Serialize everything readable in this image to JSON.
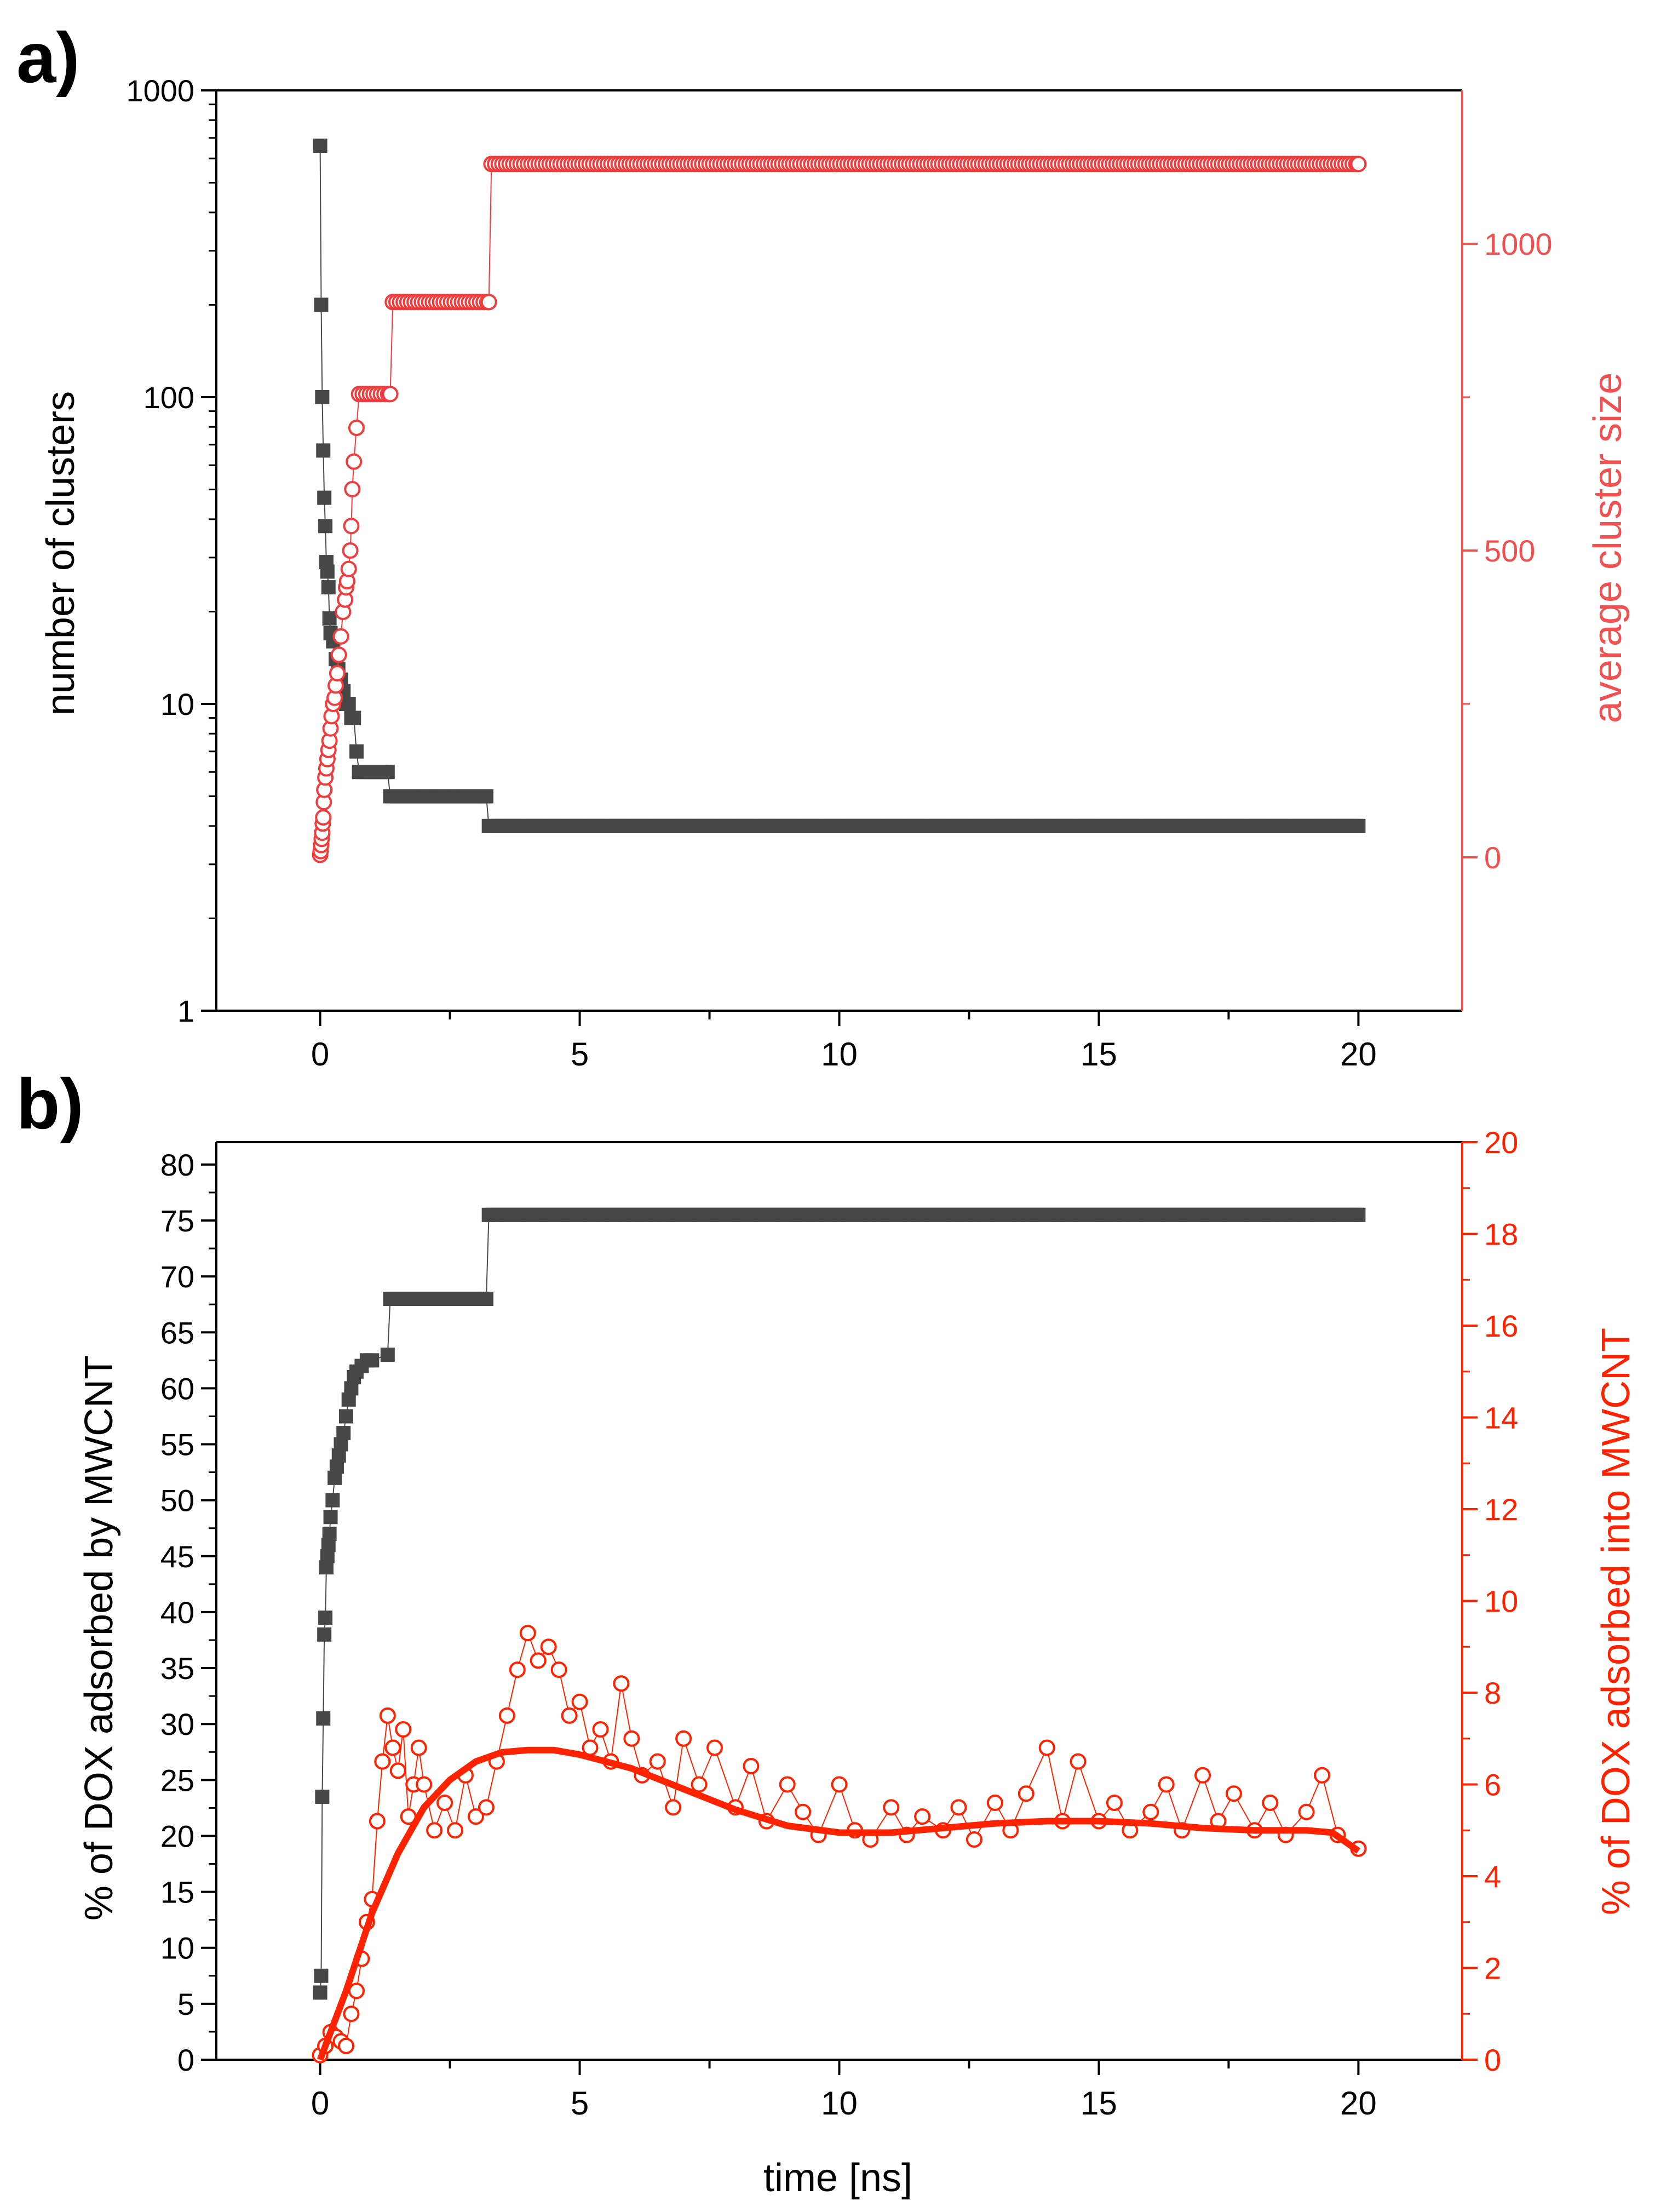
{
  "colors": {
    "black_series": "#474747",
    "red_series_a": "#f03c3c",
    "red_series_b": "#ff2200",
    "axis": "#000000",
    "right_axis_a": "#f05050",
    "right_axis_b": "#ff2200"
  },
  "chart_data": [
    {
      "panel_label": "a)",
      "type": "scatter",
      "xlabel": "",
      "ylabel": "number of clusters",
      "y2label": "average cluster size",
      "xlim": [
        -2,
        22
      ],
      "ylim": [
        1,
        1000
      ],
      "yscale": "log",
      "y2lim": [
        -250,
        1250
      ],
      "xticks": [
        "0",
        "5",
        "10",
        "15",
        "20"
      ],
      "yticks": [
        "1",
        "10",
        "100",
        "1000"
      ],
      "y2ticks": [
        "0",
        "500",
        "1000"
      ],
      "series": [
        {
          "axis": "left",
          "marker": "filled-square",
          "color": "#474747",
          "points": [
            [
              0,
              660
            ],
            [
              0.02,
              200
            ],
            [
              0.04,
              100
            ],
            [
              0.06,
              67
            ],
            [
              0.08,
              47
            ],
            [
              0.1,
              38
            ],
            [
              0.12,
              29
            ],
            [
              0.14,
              27
            ],
            [
              0.16,
              24
            ],
            [
              0.18,
              19
            ],
            [
              0.2,
              17
            ],
            [
              0.25,
              16
            ],
            [
              0.3,
              14
            ],
            [
              0.35,
              13
            ],
            [
              0.4,
              12
            ],
            [
              0.45,
              11
            ],
            [
              0.5,
              10
            ],
            [
              0.55,
              10
            ],
            [
              0.6,
              9
            ],
            [
              0.65,
              9
            ],
            [
              0.7,
              7
            ],
            [
              0.75,
              6
            ],
            [
              1.3,
              6
            ],
            [
              1.35,
              5
            ],
            [
              3.2,
              5
            ],
            [
              3.25,
              4
            ],
            [
              20,
              4
            ]
          ]
        },
        {
          "axis": "right",
          "marker": "open-circle",
          "color": "#f03c3c",
          "points": [
            [
              0,
              4
            ],
            [
              0.01,
              10
            ],
            [
              0.02,
              20
            ],
            [
              0.03,
              30
            ],
            [
              0.04,
              40
            ],
            [
              0.05,
              55
            ],
            [
              0.06,
              65
            ],
            [
              0.07,
              90
            ],
            [
              0.08,
              110
            ],
            [
              0.1,
              130
            ],
            [
              0.12,
              145
            ],
            [
              0.14,
              160
            ],
            [
              0.16,
              175
            ],
            [
              0.18,
              190
            ],
            [
              0.2,
              210
            ],
            [
              0.22,
              230
            ],
            [
              0.25,
              250
            ],
            [
              0.28,
              260
            ],
            [
              0.3,
              280
            ],
            [
              0.33,
              300
            ],
            [
              0.36,
              330
            ],
            [
              0.4,
              360
            ],
            [
              0.44,
              400
            ],
            [
              0.48,
              420
            ],
            [
              0.5,
              440
            ],
            [
              0.52,
              450
            ],
            [
              0.55,
              470
            ],
            [
              0.58,
              500
            ],
            [
              0.6,
              540
            ],
            [
              0.62,
              600
            ],
            [
              0.65,
              645
            ],
            [
              0.7,
              700
            ],
            [
              0.75,
              755
            ],
            [
              1.35,
              755
            ],
            [
              1.4,
              905
            ],
            [
              3.25,
              905
            ],
            [
              3.3,
              1130
            ],
            [
              20,
              1130
            ]
          ]
        }
      ]
    },
    {
      "panel_label": "b)",
      "type": "scatter",
      "xlabel": "time [ns]",
      "ylabel": "% of DOX adsorbed by MWCNT",
      "y2label": "% of DOX adsorbed into MWCNT",
      "xlim": [
        -2,
        22
      ],
      "ylim": [
        0,
        82
      ],
      "y2lim": [
        0,
        20
      ],
      "xticks": [
        "0",
        "5",
        "10",
        "15",
        "20"
      ],
      "yticks": [
        "0",
        "5",
        "10",
        "15",
        "20",
        "25",
        "30",
        "35",
        "40",
        "45",
        "50",
        "55",
        "60",
        "65",
        "70",
        "75",
        "80"
      ],
      "y2ticks": [
        "0",
        "2",
        "4",
        "6",
        "8",
        "10",
        "12",
        "14",
        "16",
        "18",
        "20"
      ],
      "series": [
        {
          "axis": "left",
          "marker": "filled-square",
          "color": "#474747",
          "points": [
            [
              0,
              6
            ],
            [
              0.02,
              7.5
            ],
            [
              0.04,
              23.5
            ],
            [
              0.06,
              30.5
            ],
            [
              0.08,
              38
            ],
            [
              0.1,
              39.5
            ],
            [
              0.12,
              44
            ],
            [
              0.14,
              45
            ],
            [
              0.16,
              46
            ],
            [
              0.18,
              47
            ],
            [
              0.2,
              48.5
            ],
            [
              0.24,
              50
            ],
            [
              0.28,
              52
            ],
            [
              0.32,
              53
            ],
            [
              0.36,
              54
            ],
            [
              0.4,
              55
            ],
            [
              0.45,
              56
            ],
            [
              0.5,
              57.5
            ],
            [
              0.55,
              59
            ],
            [
              0.6,
              60
            ],
            [
              0.65,
              61
            ],
            [
              0.7,
              61.5
            ],
            [
              0.8,
              62
            ],
            [
              0.9,
              62.5
            ],
            [
              1.0,
              62.5
            ],
            [
              1.3,
              63
            ],
            [
              1.35,
              68
            ],
            [
              3.2,
              68
            ],
            [
              3.25,
              75.5
            ],
            [
              20,
              75.5
            ]
          ]
        },
        {
          "axis": "right",
          "marker": "open-circle",
          "color": "#ff2200",
          "description_points": "noisy scatter around the fitted curve",
          "points": [
            [
              0,
              0.1
            ],
            [
              0.1,
              0.3
            ],
            [
              0.2,
              0.6
            ],
            [
              0.3,
              0.5
            ],
            [
              0.4,
              0.4
            ],
            [
              0.5,
              0.3
            ],
            [
              0.6,
              1.0
            ],
            [
              0.7,
              1.5
            ],
            [
              0.8,
              2.2
            ],
            [
              0.9,
              3.0
            ],
            [
              1.0,
              3.5
            ],
            [
              1.1,
              5.2
            ],
            [
              1.2,
              6.5
            ],
            [
              1.3,
              7.5
            ],
            [
              1.4,
              6.8
            ],
            [
              1.5,
              6.3
            ],
            [
              1.6,
              7.2
            ],
            [
              1.7,
              5.3
            ],
            [
              1.8,
              6.0
            ],
            [
              1.9,
              6.8
            ],
            [
              2.0,
              6.0
            ],
            [
              2.2,
              5.0
            ],
            [
              2.4,
              5.6
            ],
            [
              2.6,
              5.0
            ],
            [
              2.8,
              6.2
            ],
            [
              3.0,
              5.3
            ],
            [
              3.2,
              5.5
            ],
            [
              3.4,
              6.5
            ],
            [
              3.6,
              7.5
            ],
            [
              3.8,
              8.5
            ],
            [
              4.0,
              9.3
            ],
            [
              4.2,
              8.7
            ],
            [
              4.4,
              9.0
            ],
            [
              4.6,
              8.5
            ],
            [
              4.8,
              7.5
            ],
            [
              5.0,
              7.8
            ],
            [
              5.2,
              6.8
            ],
            [
              5.4,
              7.2
            ],
            [
              5.6,
              6.5
            ],
            [
              5.8,
              8.2
            ],
            [
              6.0,
              7.0
            ],
            [
              6.2,
              6.2
            ],
            [
              6.5,
              6.5
            ],
            [
              6.8,
              5.5
            ],
            [
              7.0,
              7.0
            ],
            [
              7.3,
              6.0
            ],
            [
              7.6,
              6.8
            ],
            [
              8.0,
              5.5
            ],
            [
              8.3,
              6.4
            ],
            [
              8.6,
              5.2
            ],
            [
              9.0,
              6.0
            ],
            [
              9.3,
              5.4
            ],
            [
              9.6,
              4.9
            ],
            [
              10.0,
              6.0
            ],
            [
              10.3,
              5.0
            ],
            [
              10.6,
              4.8
            ],
            [
              11.0,
              5.5
            ],
            [
              11.3,
              4.9
            ],
            [
              11.6,
              5.3
            ],
            [
              12.0,
              5.0
            ],
            [
              12.3,
              5.5
            ],
            [
              12.6,
              4.8
            ],
            [
              13.0,
              5.6
            ],
            [
              13.3,
              5.0
            ],
            [
              13.6,
              5.8
            ],
            [
              14.0,
              6.8
            ],
            [
              14.3,
              5.2
            ],
            [
              14.6,
              6.5
            ],
            [
              15.0,
              5.2
            ],
            [
              15.3,
              5.6
            ],
            [
              15.6,
              5.0
            ],
            [
              16.0,
              5.4
            ],
            [
              16.3,
              6.0
            ],
            [
              16.6,
              5.0
            ],
            [
              17.0,
              6.2
            ],
            [
              17.3,
              5.2
            ],
            [
              17.6,
              5.8
            ],
            [
              18.0,
              5.0
            ],
            [
              18.3,
              5.6
            ],
            [
              18.6,
              4.9
            ],
            [
              19.0,
              5.4
            ],
            [
              19.3,
              6.2
            ],
            [
              19.6,
              4.9
            ],
            [
              20.0,
              4.6
            ]
          ]
        },
        {
          "axis": "right",
          "marker": "line",
          "color": "#ff2200",
          "points": [
            [
              0,
              0
            ],
            [
              0.5,
              1.5
            ],
            [
              1.0,
              3.2
            ],
            [
              1.5,
              4.5
            ],
            [
              2.0,
              5.5
            ],
            [
              2.5,
              6.1
            ],
            [
              3.0,
              6.5
            ],
            [
              3.5,
              6.7
            ],
            [
              4.0,
              6.75
            ],
            [
              4.5,
              6.75
            ],
            [
              5.0,
              6.65
            ],
            [
              6.0,
              6.35
            ],
            [
              7.0,
              5.9
            ],
            [
              8.0,
              5.45
            ],
            [
              9.0,
              5.1
            ],
            [
              10.0,
              4.95
            ],
            [
              11.0,
              4.95
            ],
            [
              12.0,
              5.05
            ],
            [
              13.0,
              5.15
            ],
            [
              14.0,
              5.2
            ],
            [
              15.0,
              5.2
            ],
            [
              16.0,
              5.15
            ],
            [
              17.0,
              5.05
            ],
            [
              18.0,
              5.0
            ],
            [
              19.0,
              5.0
            ],
            [
              19.5,
              4.95
            ],
            [
              20.0,
              4.55
            ]
          ]
        }
      ]
    }
  ]
}
